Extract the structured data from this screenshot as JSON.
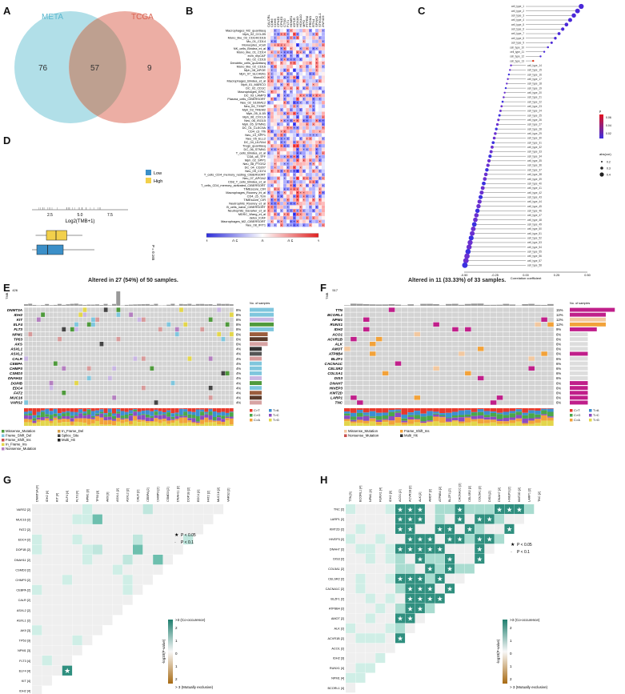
{
  "panels": {
    "A": {
      "letter": "A",
      "left_label": "META",
      "right_label": "TCGA",
      "left_only": "76",
      "overlap": "57",
      "right_only": "9",
      "left_color": "#a9dbe6",
      "right_color": "#eaa59a"
    },
    "B": {
      "letter": "B",
      "columns": [
        "CALCRL",
        "CDB6",
        "CDH5",
        "CPNE3",
        "CPNE3",
        "CTSG",
        "FLT1",
        "HDMR1",
        "IGF1R",
        "HOXA9",
        "HOXA10",
        "MPO",
        "PTPRM",
        "PROM1",
        "RTN4",
        "SPINK2",
        "ST6GAL1",
        "ZNF423"
      ],
      "rows": [
        "Macrophages_M2_quantiseq",
        "Mph_02_CCL2B",
        "Mono_like_03_CD14/CD16",
        "Mo_01_CD14",
        "Monocytes_xCell",
        "NK_cells_Bindea_et_al",
        "Mono_like_01_CD14",
        "ecm_myCAF",
        "Mo_02_CD16",
        "Dendritic_cells_quantiseq",
        "Mono_like_02_CD16",
        "Mph_08_APOE",
        "Mph_07_SLC40A1",
        "MonoDC",
        "Macrophages_Bindea_et_al",
        "Mph_01_MARCO",
        "DC_02_CD1C",
        "Macrophages_EPIC",
        "DC_03_LAMP3",
        "Plasma_cells_CIBERSORT",
        "Neu_02_S100A12",
        "Neu_04_TXNIP",
        "Mph_03_TREM2",
        "Mph_05_IL1B",
        "Mph_06_CXCL9",
        "Neu_06_ISG15",
        "Mph_05_STMN1",
        "DC_01_CLEC9A",
        "CD4_c3_Tfh",
        "Neu_10_SPP1",
        "Neu_05_ELL2",
        "DC_04_LILRA4",
        "Tregs_quantiseq",
        "DC_06_STMN1",
        "T_cells_Bindea_et_al",
        "CD8_c8_TFF",
        "Mph_02_SPP1",
        "Neu_08_PTGS2",
        "DC_04_CD207",
        "Neu_09_CD74",
        "T_cells_CD4_memory_resting_CIBERSORT",
        "Neu_07_APOA2",
        "CD8_T_cells_Bindea_et_al",
        "T_cells_CD4_memory_activated_CIBERSORT",
        "TIMEscore_CIR",
        "Macrophages_Rooney_et_al",
        "CD4_c5_Tcm",
        "TIMEscore_CIR",
        "Neutrophils_Rooney_et_al",
        "B_cells_naive_CIBERSORT",
        "Neutrophils_Danaher_et_al",
        "MDSC_Wang_et_al",
        "detox_iCAF",
        "Macrophages_M2_CIBERSORT",
        "Neu_08_IFIT1"
      ],
      "legend_ticks": [
        "-1",
        "-0.5",
        "0",
        "0.5",
        "1"
      ],
      "low_color": "#2c2cd9",
      "mid_color": "#ffffff",
      "high_color": "#e02020"
    },
    "C": {
      "letter": "C",
      "axis_label": "Correlation coefficient",
      "axis_ticks": [
        "-0.50",
        "-0.25",
        "0.00",
        "0.25",
        "0.50"
      ],
      "p_legend_title": "p",
      "p_ticks": [
        "0.06",
        "0.04",
        "0.02"
      ],
      "size_legend_title": "abs(cor)",
      "size_ticks": [
        "0.2",
        "0.3",
        "0.4"
      ]
    },
    "D": {
      "letter": "D",
      "xlabel": "Log2(TMB+1)",
      "ticks": [
        "2.5",
        "5.0",
        "7.5"
      ],
      "legend": [
        {
          "name": "Low",
          "color": "#3b8fc8"
        },
        {
          "name": "High",
          "color": "#f2d04b"
        }
      ],
      "p_text": "P = 0.165"
    },
    "E": {
      "letter": "E",
      "title": "Altered in 27 (54%) of 50 samples.",
      "tmb_label": "TMB",
      "tmb_max": "426",
      "samples_label": "No. of samples",
      "genes": [
        "DNMT3A",
        "IDH2",
        "KIT",
        "ELF4",
        "FLT3",
        "NPM1",
        "TP53",
        "AKS",
        "ASXL1",
        "ASXL2",
        "CALR",
        "CEBPA",
        "CHMP3",
        "CSMD3",
        "DNAH11",
        "DOPIB",
        "EDC4",
        "FAT2",
        "MUC16",
        "VARS2"
      ],
      "percents": [
        "8%",
        "8%",
        "8%",
        "8%",
        "8%",
        "6%",
        "6%",
        "6%",
        "4%",
        "4%",
        "4%",
        "4%",
        "4%",
        "4%",
        "4%",
        "4%",
        "4%",
        "4%",
        "4%",
        "4%"
      ],
      "titv_legend": [
        "C>T",
        "T>A",
        "C>G",
        "T>C",
        "C>A",
        "T>G"
      ],
      "var_legend": [
        "Missense_Mutation",
        "Frame_Shift_Del",
        "Frame_Shift_Ins",
        "In_Frame_Ins",
        "Nonsense_Mutation",
        "In_Frame_Del",
        "Splice_Site",
        "Multi_Hit"
      ]
    },
    "F": {
      "letter": "F",
      "title": "Altered in 11 (33.33%) of 33 samples.",
      "tmb_label": "TMB",
      "tmb_max": "517",
      "samples_label": "No. of samples",
      "genes": [
        "TTN",
        "BCORL1",
        "NPM1",
        "RUNX1",
        "IDH2",
        "ACO1",
        "ACVR1B",
        "ALK",
        "AMOT",
        "ATP8B4",
        "BLZF1",
        "CACNA1C",
        "CELSR2",
        "COLSA1",
        "DIS3",
        "DNAH7",
        "HIVEP3",
        "KMT2D",
        "LARP1",
        "TNC"
      ],
      "percents": [
        "15%",
        "12%",
        "12%",
        "12%",
        "9%",
        "6%",
        "6%",
        "6%",
        "6%",
        "6%",
        "6%",
        "6%",
        "6%",
        "6%",
        "6%",
        "6%",
        "6%",
        "6%",
        "6%",
        "6%"
      ],
      "titv_legend": [
        "C>T",
        "T>A",
        "C>G",
        "T>C",
        "C>A",
        "T>G"
      ],
      "var_legend": [
        "Missense_Mutation",
        "Nonsense_Mutation",
        "Frame_Shift_Ins",
        "Multi_Hit"
      ]
    },
    "G": {
      "letter": "G",
      "genes": [
        "DNMT3A [4]",
        "IDH2 [4]",
        "KIT [4]",
        "ELF4 [4]",
        "FLT3 [4]",
        "NPM1 [3]",
        "TP53 [3]",
        "AK9 [3]",
        "ASXL1 [2]",
        "ASXL2 [2]",
        "CALR [2]",
        "CEBPA [2]",
        "CHMP3 [2]",
        "CSMD3 [2]",
        "DNAH11 [2]",
        "DOP1B [2]",
        "EDC4 [2]",
        "FAT2 [2]",
        "MUC16 [2]",
        "VARS2 [2]"
      ],
      "sig_legend": [
        {
          "mark": "★",
          "text": "P < 0.05"
        },
        {
          "mark": "·",
          "text": "P < 0.1"
        }
      ],
      "legend_top": ">3 (Co-occurence)",
      "legend_bottom": "> 3 (Mutually exclusive)",
      "legend_axis": "-log10(P-value)",
      "legend_ticks": [
        "2",
        "1",
        "0",
        "1",
        "2"
      ]
    },
    "H": {
      "letter": "H",
      "genes": [
        "TTN [5]",
        "BCORL1 [4]",
        "NPM1 [4]",
        "RUNX1 [4]",
        "IDH2 [3]",
        "ACO1 [2]",
        "ACVR1B [2]",
        "ALK [2]",
        "AMOT [2]",
        "ATP8B4 [2]",
        "BLZF1 [2]",
        "CACNA1C [2]",
        "CELSR2 [2]",
        "COL5A1 [2]",
        "DIS3 [2]",
        "DNAH7 [2]",
        "HIVEP3 [2]",
        "KMT2D [2]",
        "LARP1 [2]",
        "TNC [2]"
      ],
      "sig_legend": [
        {
          "mark": "★",
          "text": "P < 0.05"
        },
        {
          "mark": "·",
          "text": "P < 0.1"
        }
      ],
      "legend_top": ">3 (Co-occurence)",
      "legend_bottom": "> 3 (Mutually exclusive)",
      "legend_axis": "-log10(P-value)",
      "legend_ticks": [
        "2",
        "1",
        "0",
        "1",
        "2"
      ]
    }
  }
}
